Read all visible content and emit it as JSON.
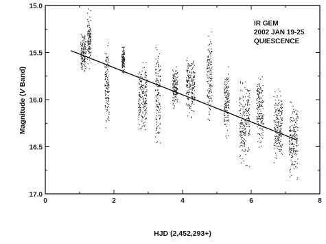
{
  "chart_data": {
    "type": "scatter",
    "title": "",
    "xlabel": "HJD (2,452,293+)",
    "ylabel_prefix": "Magnitude (",
    "ylabel_italic": "V",
    "ylabel_suffix": " Band)",
    "xlim": [
      0,
      8
    ],
    "ylim": [
      15.0,
      17.0
    ],
    "y_inverted": true,
    "grid": false,
    "x_ticks": [
      {
        "value": 0,
        "label": "0"
      },
      {
        "value": 2,
        "label": "2"
      },
      {
        "value": 4,
        "label": "4"
      },
      {
        "value": 6,
        "label": "6"
      },
      {
        "value": 8,
        "label": "8"
      }
    ],
    "y_ticks": [
      {
        "value": 15.0,
        "label": "15.0"
      },
      {
        "value": 15.5,
        "label": "15.5"
      },
      {
        "value": 16.0,
        "label": "16.0"
      },
      {
        "value": 16.5,
        "label": "16.5"
      },
      {
        "value": 17.0,
        "label": "17.0"
      }
    ],
    "annotations": [
      "IR GEM",
      "2002 JAN 19-25",
      "QUIESCENCE"
    ],
    "trend_line": {
      "x": [
        0.75,
        7.35
      ],
      "y": [
        15.48,
        16.43
      ]
    },
    "observing_runs": [
      {
        "x_start": 1.02,
        "x_end": 1.18,
        "y_low": 15.28,
        "y_high": 15.72
      },
      {
        "x_start": 1.22,
        "x_end": 1.32,
        "y_low": 15.02,
        "y_high": 15.68
      },
      {
        "x_start": 1.72,
        "x_end": 1.85,
        "y_low": 15.38,
        "y_high": 16.33
      },
      {
        "x_start": 2.22,
        "x_end": 2.3,
        "y_low": 15.42,
        "y_high": 15.72
      },
      {
        "x_start": 2.7,
        "x_end": 2.95,
        "y_low": 15.55,
        "y_high": 16.35
      },
      {
        "x_start": 3.2,
        "x_end": 3.35,
        "y_low": 15.28,
        "y_high": 16.58
      },
      {
        "x_start": 3.7,
        "x_end": 3.85,
        "y_low": 15.6,
        "y_high": 16.12
      },
      {
        "x_start": 4.1,
        "x_end": 4.35,
        "y_low": 15.5,
        "y_high": 16.22
      },
      {
        "x_start": 4.7,
        "x_end": 4.85,
        "y_low": 15.2,
        "y_high": 16.28
      },
      {
        "x_start": 5.2,
        "x_end": 5.35,
        "y_low": 15.62,
        "y_high": 16.42
      },
      {
        "x_start": 5.65,
        "x_end": 5.95,
        "y_low": 15.75,
        "y_high": 16.72
      },
      {
        "x_start": 6.15,
        "x_end": 6.35,
        "y_low": 15.7,
        "y_high": 16.55
      },
      {
        "x_start": 6.65,
        "x_end": 6.9,
        "y_low": 15.85,
        "y_high": 16.68
      },
      {
        "x_start": 7.1,
        "x_end": 7.35,
        "y_low": 16.0,
        "y_high": 16.85
      }
    ]
  }
}
